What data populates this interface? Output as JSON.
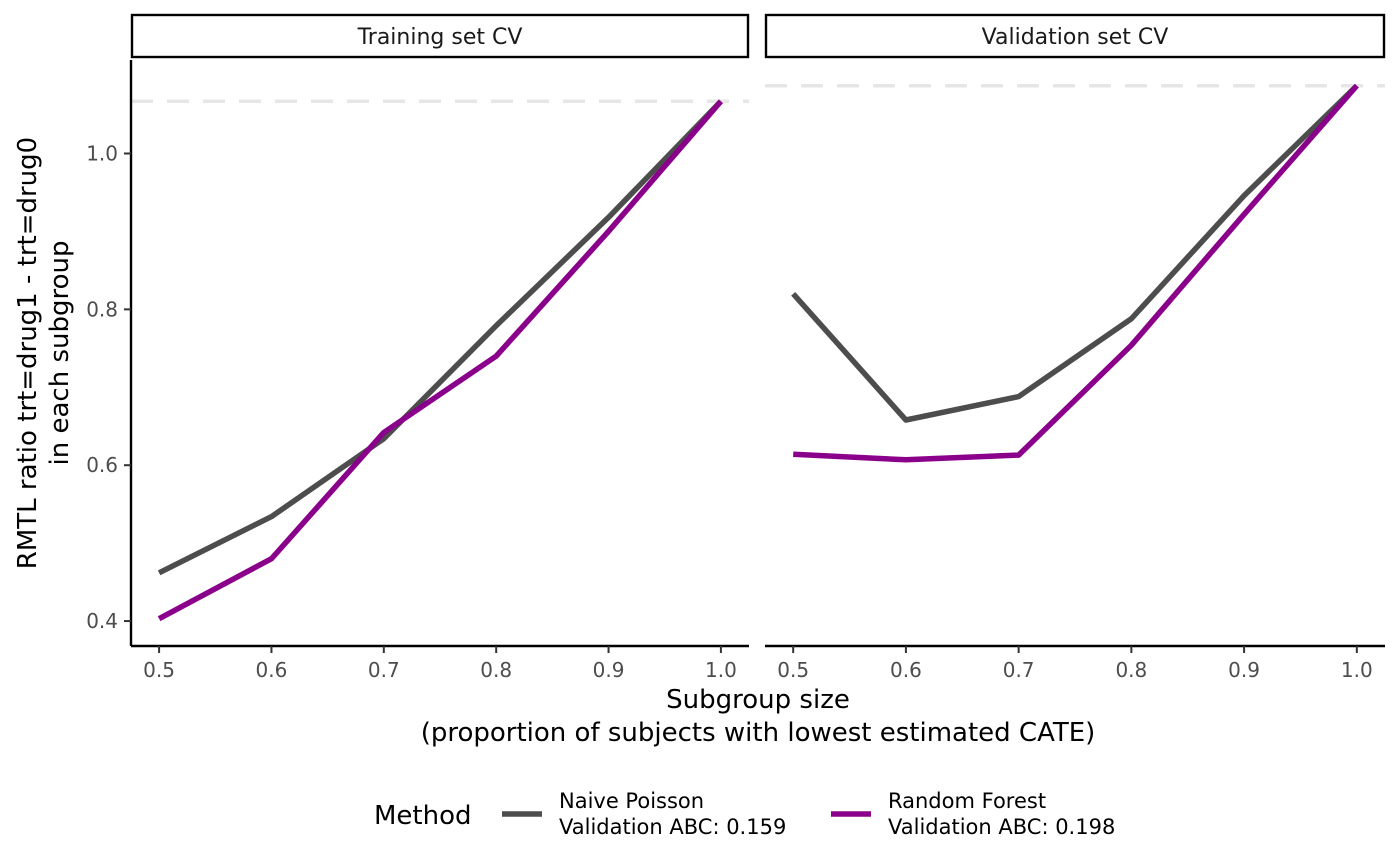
{
  "chart_data": {
    "type": "line",
    "y_axis_title": [
      "RMTL ratio trt=drug1 - trt=drug0",
      "in each subgroup"
    ],
    "x_axis_title": [
      "Subgroup size",
      "(proportion of subjects with lowest estimated CATE)"
    ],
    "x_ticks": [
      "0.5",
      "0.6",
      "0.7",
      "0.8",
      "0.9",
      "1.0"
    ],
    "y_ticks": [
      "0.4",
      "0.6",
      "0.8",
      "1.0"
    ],
    "x": [
      0.5,
      0.6,
      0.7,
      0.8,
      0.9,
      1.0
    ],
    "xlim": [
      0.475,
      1.025
    ],
    "ylim": [
      0.368,
      1.12
    ],
    "legend": {
      "title": "Method",
      "position": "bottom"
    },
    "series_styles": [
      {
        "name": "Naive Poisson",
        "label_lines": [
          "Naive Poisson",
          "Validation ABC: 0.159"
        ],
        "color": "#4d4d4d"
      },
      {
        "name": "Random Forest",
        "label_lines": [
          "Random Forest",
          "Validation ABC: 0.198"
        ],
        "color": "#8b008b"
      }
    ],
    "reference_line_color": "#e6e6e6",
    "panels": [
      {
        "title": "Training set CV",
        "reference_y": 1.067,
        "series": [
          {
            "name": "Naive Poisson",
            "values": [
              0.462,
              0.534,
              0.634,
              0.779,
              0.918,
              1.067
            ]
          },
          {
            "name": "Random Forest",
            "values": [
              0.403,
              0.48,
              0.642,
              0.74,
              0.9,
              1.067
            ]
          }
        ]
      },
      {
        "title": "Validation set CV",
        "reference_y": 1.087,
        "series": [
          {
            "name": "Naive Poisson",
            "values": [
              0.82,
              0.658,
              0.688,
              0.788,
              0.946,
              1.087
            ]
          },
          {
            "name": "Random Forest",
            "values": [
              0.614,
              0.607,
              0.613,
              0.754,
              0.922,
              1.087
            ]
          }
        ]
      }
    ]
  }
}
